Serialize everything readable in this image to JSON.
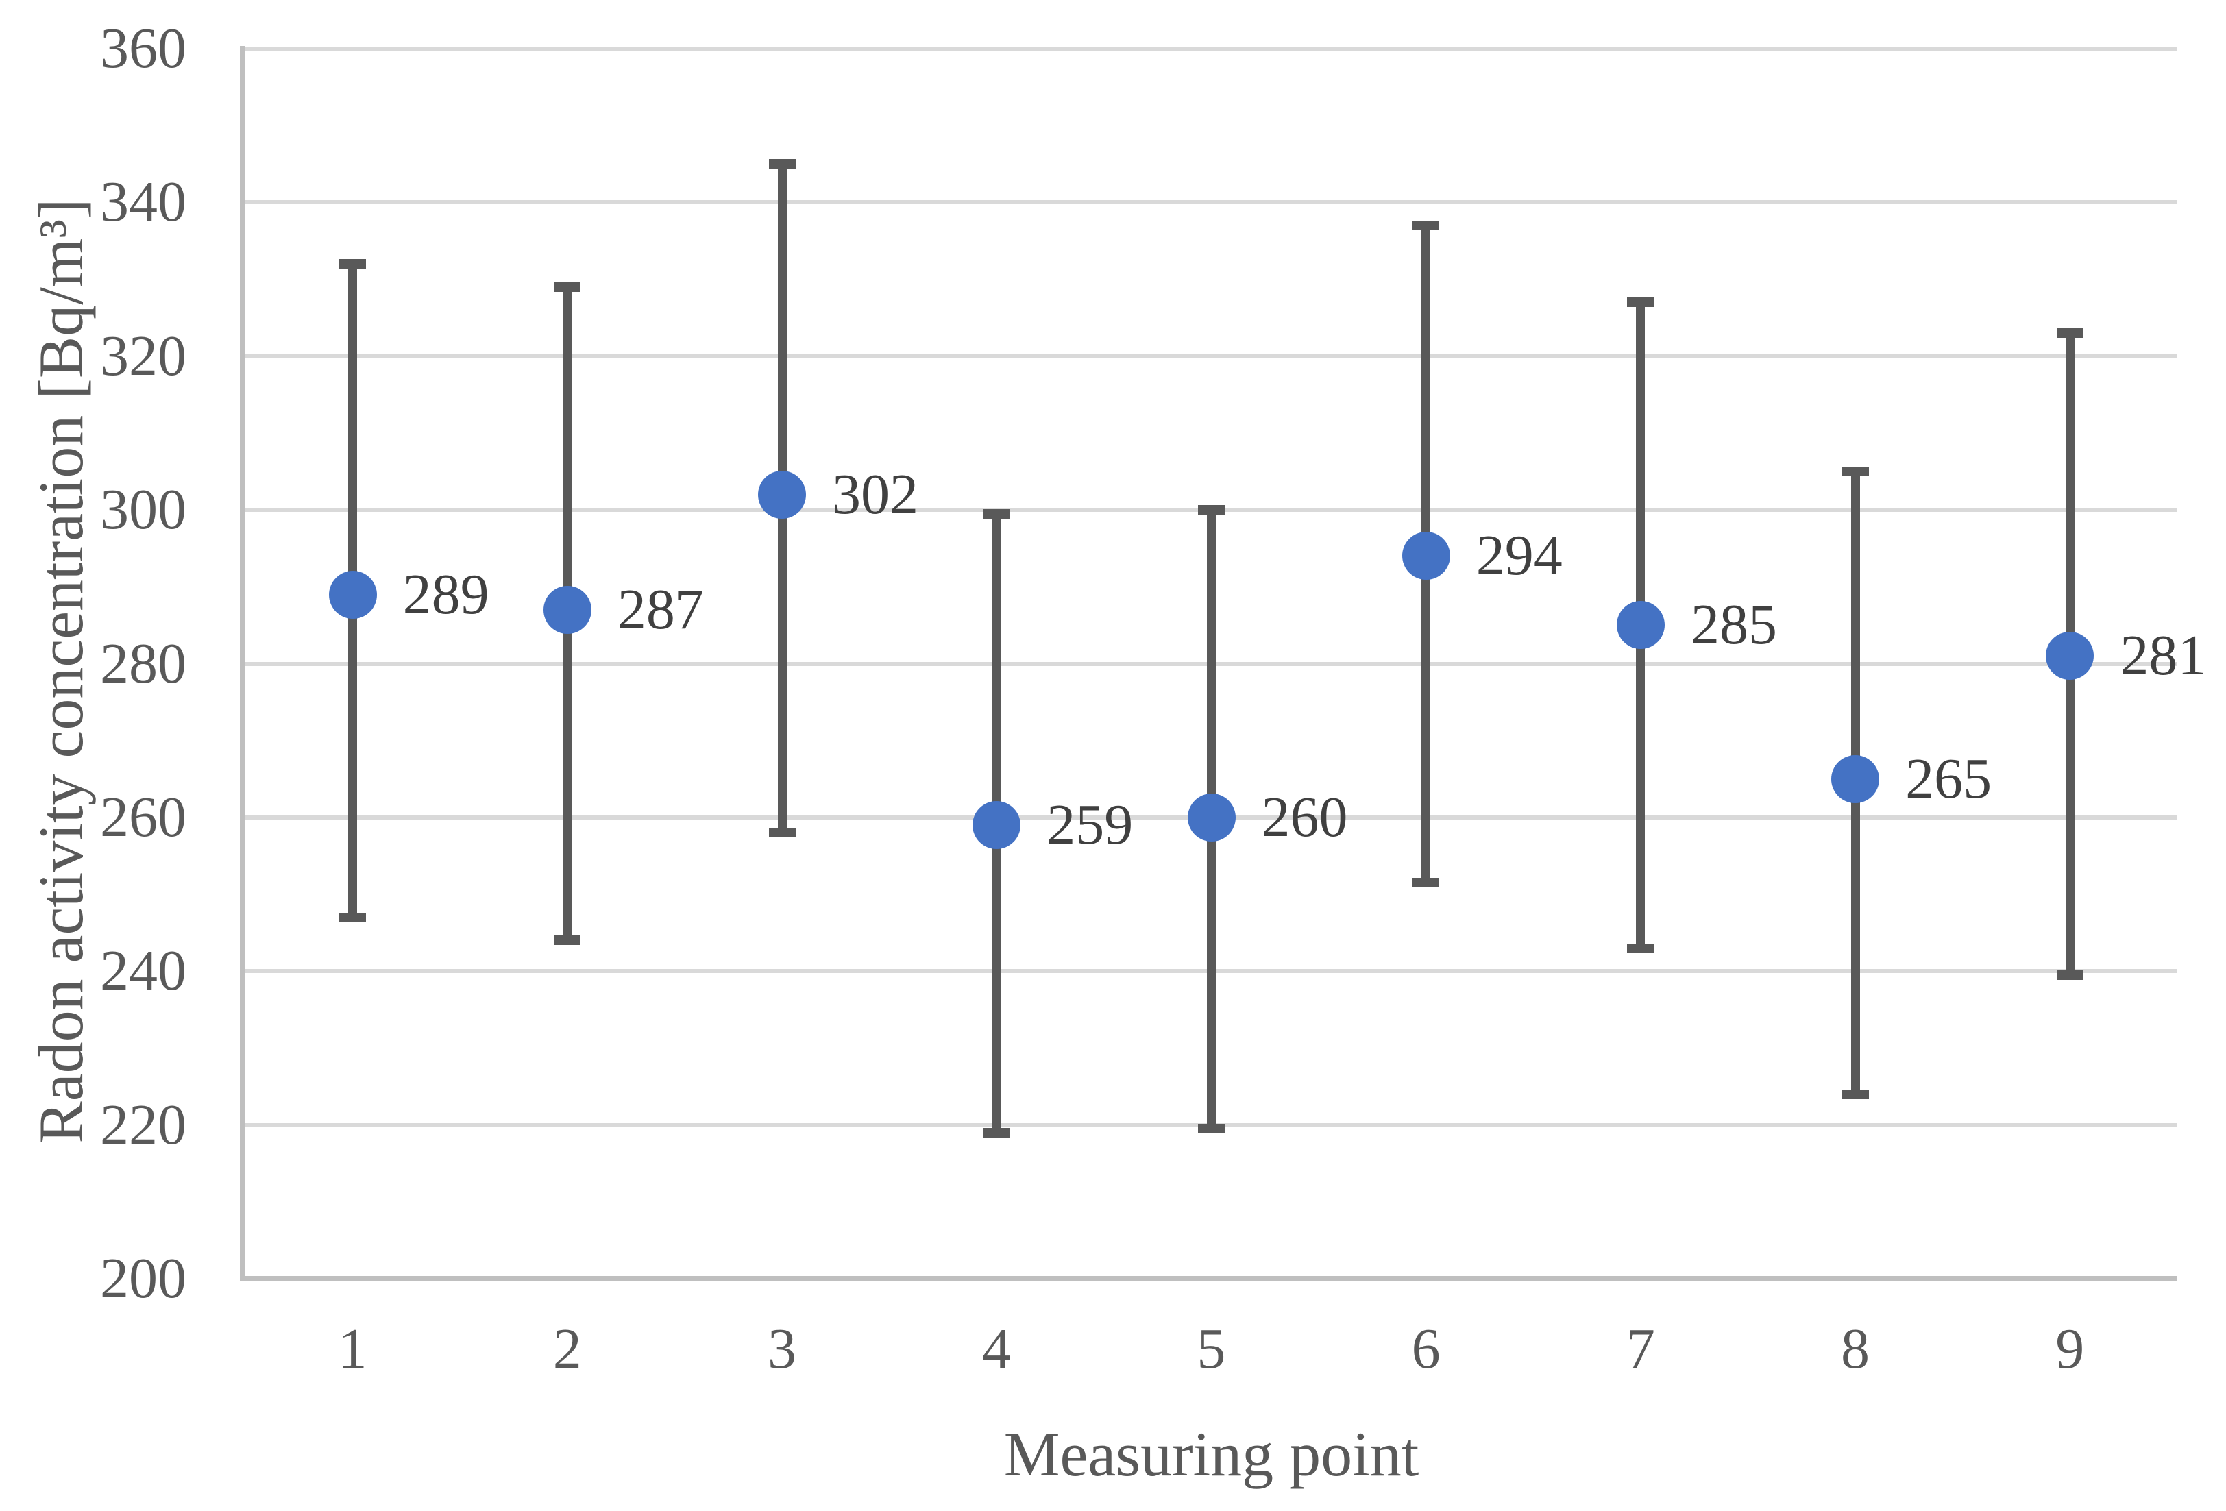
{
  "chart_data": {
    "type": "scatter",
    "title": "",
    "xlabel": "Measuring point",
    "ylabel": "Radon activity concentration [Bq/m³]",
    "ylim": [
      200,
      360
    ],
    "y_ticks": [
      200,
      220,
      240,
      260,
      280,
      300,
      320,
      340,
      360
    ],
    "x_ticks": [
      "1",
      "2",
      "3",
      "4",
      "5",
      "6",
      "7",
      "8",
      "9"
    ],
    "grid": "horizontal",
    "legend": "none",
    "points": [
      {
        "x": 1,
        "value": 289,
        "label": "289",
        "error_high": 332,
        "error_low": 247
      },
      {
        "x": 2,
        "value": 287,
        "label": "287",
        "error_high": 329,
        "error_low": 244
      },
      {
        "x": 3,
        "value": 302,
        "label": "302",
        "error_high": 345,
        "error_low": 258
      },
      {
        "x": 4,
        "value": 259,
        "label": "259",
        "error_high": 299.5,
        "error_low": 219
      },
      {
        "x": 5,
        "value": 260,
        "label": "260",
        "error_high": 300,
        "error_low": 219.5
      },
      {
        "x": 6,
        "value": 294,
        "label": "294",
        "error_high": 337,
        "error_low": 251.5
      },
      {
        "x": 7,
        "value": 285,
        "label": "285",
        "error_high": 327,
        "error_low": 243
      },
      {
        "x": 8,
        "value": 265,
        "label": "265",
        "error_high": 305,
        "error_low": 224
      },
      {
        "x": 9,
        "value": 281,
        "label": "281",
        "error_high": 323,
        "error_low": 239.5
      }
    ],
    "colors": {
      "marker": "#4472C4",
      "error_bar": "#595959",
      "gridline": "#D9D9D9",
      "axis_line": "#BFBFBF",
      "tick_text": "#595959",
      "axis_title_text": "#595959",
      "data_label_text": "#404040"
    }
  }
}
